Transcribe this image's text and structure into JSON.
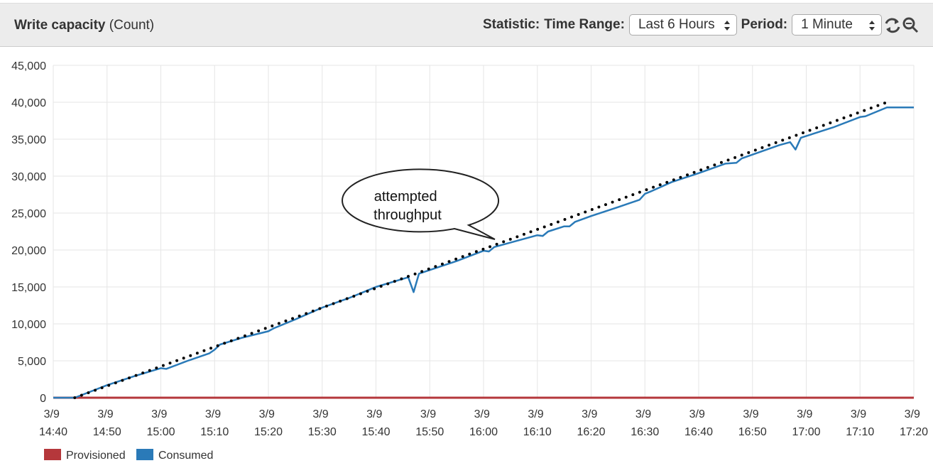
{
  "toolbar": {
    "statistic_label": "Statistic:",
    "time_range_label": "Time Range:",
    "time_range": "Last 6 Hours",
    "period_label": "Period:",
    "period": "1 Minute"
  },
  "chart_data": {
    "type": "line",
    "title": "Write capacity",
    "unit": "(Count)",
    "x": [
      "3/9 14:40",
      "3/9 14:44",
      "3/9 14:50",
      "3/9 14:55",
      "3/9 15:00",
      "3/9 15:01",
      "3/9 15:05",
      "3/9 15:09",
      "3/9 15:10",
      "3/9 15:11",
      "3/9 15:15",
      "3/9 15:20",
      "3/9 15:21",
      "3/9 15:25",
      "3/9 15:30",
      "3/9 15:35",
      "3/9 15:40",
      "3/9 15:46",
      "3/9 15:47",
      "3/9 15:48",
      "3/9 15:55",
      "3/9 16:00",
      "3/9 16:01",
      "3/9 16:02",
      "3/9 16:05",
      "3/9 16:10",
      "3/9 16:11",
      "3/9 16:12",
      "3/9 16:15",
      "3/9 16:16",
      "3/9 16:17",
      "3/9 16:20",
      "3/9 16:25",
      "3/9 16:29",
      "3/9 16:30",
      "3/9 16:31",
      "3/9 16:35",
      "3/9 16:40",
      "3/9 16:45",
      "3/9 16:47",
      "3/9 16:48",
      "3/9 16:55",
      "3/9 16:57",
      "3/9 16:58",
      "3/9 16:59",
      "3/9 17:05",
      "3/9 17:10",
      "3/9 17:11",
      "3/9 17:15",
      "3/9 17:20"
    ],
    "series": [
      {
        "name": "Provisioned",
        "color": "#b5373b",
        "values": [
          0,
          0,
          0,
          0,
          0,
          0,
          0,
          0,
          0,
          0,
          0,
          0,
          0,
          0,
          0,
          0,
          0,
          0,
          0,
          0,
          0,
          0,
          0,
          0,
          0,
          0,
          0,
          0,
          0,
          0,
          0,
          0,
          0,
          0,
          0,
          0,
          0,
          0,
          0,
          0,
          0,
          0,
          0,
          0,
          0,
          0,
          0,
          0,
          0,
          0
        ]
      },
      {
        "name": "Consumed",
        "color": "#2a7ab8",
        "values": [
          0,
          0,
          1700,
          2900,
          4000,
          3900,
          5000,
          6000,
          6500,
          7200,
          8100,
          9000,
          9400,
          10600,
          12200,
          13500,
          15000,
          16300,
          14300,
          16800,
          18500,
          19900,
          19800,
          20400,
          21000,
          22000,
          21900,
          22500,
          23200,
          23200,
          23800,
          24600,
          25800,
          26800,
          27600,
          27900,
          29200,
          30400,
          31700,
          31800,
          32400,
          34200,
          34600,
          33600,
          35200,
          36600,
          38000,
          38100,
          39300,
          39300
        ]
      }
    ],
    "annotation": {
      "text": "attempted throughput",
      "x": [
        "3/9 14:44",
        "3/9 17:15"
      ],
      "values": [
        0,
        40000
      ]
    },
    "xlim": [
      "3/9 14:40",
      "3/9 17:20"
    ],
    "xticks": [
      "3/9 14:40",
      "3/9 14:50",
      "3/9 15:00",
      "3/9 15:10",
      "3/9 15:20",
      "3/9 15:30",
      "3/9 15:40",
      "3/9 15:50",
      "3/9 16:00",
      "3/9 16:10",
      "3/9 16:20",
      "3/9 16:30",
      "3/9 16:40",
      "3/9 16:50",
      "3/9 17:00",
      "3/9 17:10",
      "3/9 17:20"
    ],
    "ylim": [
      0,
      45000
    ],
    "yticks": [
      0,
      {
        "value": 5000,
        "label": "5,000"
      },
      {
        "value": 10000,
        "label": "10,000"
      },
      {
        "value": 15000,
        "label": "15,000"
      },
      {
        "value": 20000,
        "label": "20,000"
      },
      {
        "value": 25000,
        "label": "25,000"
      },
      {
        "value": 30000,
        "label": "30,000"
      },
      {
        "value": 35000,
        "label": "35,000"
      },
      {
        "value": 40000,
        "label": "40,000"
      },
      {
        "value": 45000,
        "label": "45,000"
      }
    ],
    "grid": true
  }
}
